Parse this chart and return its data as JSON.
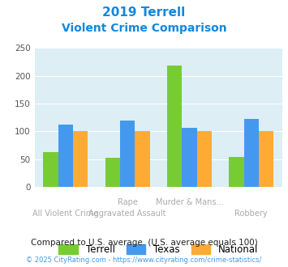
{
  "title_line1": "2019 Terrell",
  "title_line2": "Violent Crime Comparison",
  "categories_top": [
    "",
    "Rape",
    "Murder & Mans...",
    ""
  ],
  "categories_bottom": [
    "All Violent Crime",
    "Aggravated Assault",
    "",
    "Robbery"
  ],
  "terrell": [
    63,
    52,
    218,
    54
  ],
  "texas": [
    112,
    120,
    107,
    122
  ],
  "national": [
    100,
    100,
    100,
    100
  ],
  "terrell_color": "#77cc33",
  "texas_color": "#4499ee",
  "national_color": "#ffaa33",
  "ylim": [
    0,
    250
  ],
  "yticks": [
    0,
    50,
    100,
    150,
    200,
    250
  ],
  "bg_color": "#ddeef5",
  "title_color": "#1188dd",
  "label_color": "#aaaaaa",
  "footnote1": "Compared to U.S. average. (U.S. average equals 100)",
  "footnote2": "© 2025 CityRating.com - https://www.cityrating.com/crime-statistics/",
  "footnote1_color": "#222222",
  "footnote2_color": "#4499ee",
  "legend_labels": [
    "Terrell",
    "Texas",
    "National"
  ],
  "bar_width": 0.24
}
